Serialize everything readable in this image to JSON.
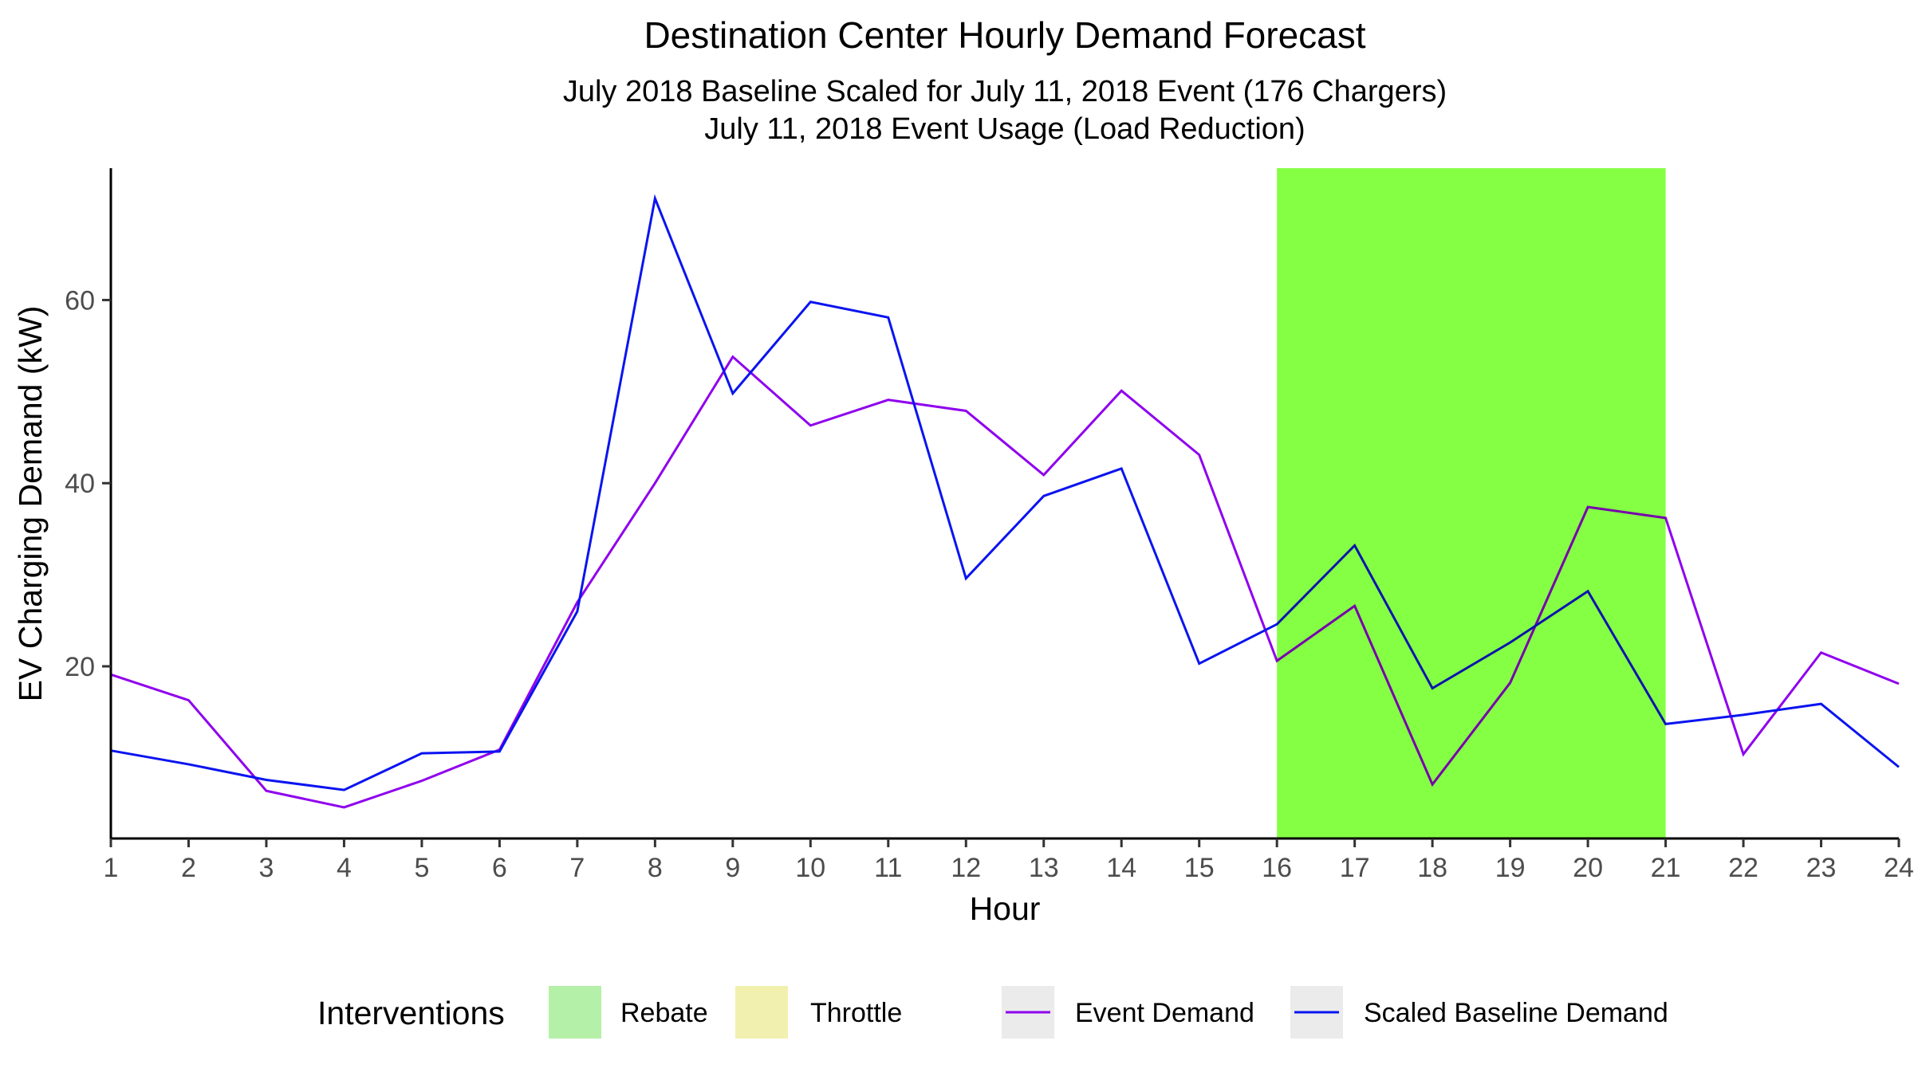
{
  "chart_data": {
    "type": "line",
    "title": "Destination Center Hourly Demand Forecast",
    "subtitle_lines": [
      "July 2018 Baseline Scaled for July 11, 2018 Event (176 Chargers)",
      "July 11, 2018 Event Usage (Load Reduction)"
    ],
    "xlabel": "Hour",
    "ylabel": "EV Charging Demand (kW)",
    "x": [
      1,
      2,
      3,
      4,
      5,
      6,
      7,
      8,
      9,
      10,
      11,
      12,
      13,
      14,
      15,
      16,
      17,
      18,
      19,
      20,
      21,
      22,
      23,
      24
    ],
    "x_tick_labels": [
      "1",
      "2",
      "3",
      "4",
      "5",
      "6",
      "7",
      "8",
      "9",
      "10",
      "11",
      "12",
      "13",
      "14",
      "15",
      "16",
      "17",
      "18",
      "19",
      "20",
      "21",
      "22",
      "23",
      "24"
    ],
    "xlim": [
      1,
      24
    ],
    "y_ticks": [
      20,
      40,
      60
    ],
    "y_tick_labels": [
      "20",
      "40",
      "60"
    ],
    "ylim": [
      1.2,
      74.4
    ],
    "grid": false,
    "legend_position": "bottom",
    "shaded_regions": [
      {
        "intervention": "Rebate",
        "x_start": 16,
        "x_end": 21,
        "color": "#a0ff5f"
      }
    ],
    "series": [
      {
        "name": "Event Demand",
        "color": "#8f00ee",
        "values": [
          19.1,
          16.3,
          6.4,
          4.6,
          7.5,
          10.9,
          27.0,
          40.0,
          53.8,
          46.3,
          49.1,
          47.9,
          40.9,
          50.1,
          43.1,
          20.6,
          26.6,
          7.1,
          18.2,
          37.4,
          36.2,
          10.4,
          21.5,
          18.1
        ]
      },
      {
        "name": "Scaled Baseline Demand",
        "color": "#0a14f0",
        "values": [
          10.8,
          9.3,
          7.6,
          6.5,
          10.5,
          10.7,
          26.0,
          71.1,
          49.8,
          59.8,
          58.1,
          29.6,
          38.6,
          41.6,
          20.3,
          24.6,
          33.2,
          17.6,
          22.6,
          28.2,
          13.7,
          14.7,
          15.9,
          9.0
        ]
      }
    ]
  },
  "legend": {
    "title": "Interventions",
    "items": [
      {
        "label": "Rebate",
        "kind": "fill",
        "color": "#b5f0a8"
      },
      {
        "label": "Throttle",
        "kind": "fill",
        "color": "#f2f0ae"
      },
      {
        "label": "Event Demand",
        "kind": "line",
        "color": "#8f00ee"
      },
      {
        "label": "Scaled Baseline Demand",
        "kind": "line",
        "color": "#0a14f0"
      }
    ]
  }
}
